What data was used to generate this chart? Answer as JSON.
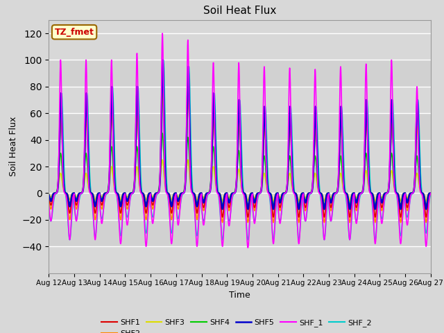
{
  "title": "Soil Heat Flux",
  "xlabel": "Time",
  "ylabel": "Soil Heat Flux",
  "ylim": [
    -60,
    130
  ],
  "yticks": [
    -40,
    -20,
    0,
    20,
    40,
    60,
    80,
    100,
    120
  ],
  "xtick_labels": [
    "Aug 12",
    "Aug 13",
    "Aug 14",
    "Aug 15",
    "Aug 16",
    "Aug 17",
    "Aug 18",
    "Aug 19",
    "Aug 20",
    "Aug 21",
    "Aug 22",
    "Aug 23",
    "Aug 24",
    "Aug 25",
    "Aug 26",
    "Aug 27"
  ],
  "series": {
    "SHF1": {
      "color": "#dd0000",
      "lw": 1.2
    },
    "SHF2": {
      "color": "#ff8800",
      "lw": 1.2
    },
    "SHF3": {
      "color": "#dddd00",
      "lw": 1.2
    },
    "SHF4": {
      "color": "#00cc00",
      "lw": 1.2
    },
    "SHF5": {
      "color": "#0000cc",
      "lw": 1.8
    },
    "SHF_1": {
      "color": "#ff00ff",
      "lw": 1.2
    },
    "SHF_2": {
      "color": "#00cccc",
      "lw": 1.2
    }
  },
  "annotation_text": "TZ_fmet",
  "annotation_color": "#cc0000",
  "annotation_bg": "#ffffcc",
  "annotation_border": "#996600",
  "fig_bg": "#d8d8d8",
  "plot_bg": "#d8d8d8",
  "grid_color": "#ffffff",
  "peak_amps": [
    100,
    100,
    100,
    105,
    120,
    115,
    98,
    98,
    95,
    94,
    93,
    95,
    97,
    100,
    80
  ],
  "shf1_peaks": [
    75,
    75,
    80,
    80,
    100,
    95,
    75,
    70,
    65,
    65,
    65,
    65,
    70,
    70,
    70
  ],
  "shf5_peaks": [
    75,
    75,
    80,
    80,
    100,
    95,
    75,
    70,
    65,
    65,
    65,
    65,
    70,
    70,
    70
  ],
  "shf3_peaks": [
    15,
    15,
    20,
    20,
    25,
    25,
    20,
    18,
    15,
    15,
    15,
    15,
    17,
    17,
    15
  ],
  "shf4_peaks": [
    30,
    30,
    35,
    35,
    45,
    42,
    35,
    32,
    28,
    28,
    28,
    28,
    30,
    30,
    28
  ],
  "shf2_peaks": [
    55,
    55,
    58,
    58,
    75,
    70,
    55,
    52,
    48,
    48,
    48,
    48,
    52,
    52,
    50
  ],
  "shf_2_peaks": [
    75,
    75,
    80,
    80,
    100,
    95,
    75,
    70,
    65,
    65,
    65,
    65,
    70,
    70,
    70
  ],
  "shf1_mins": [
    -15,
    -15,
    -15,
    -15,
    -15,
    -15,
    -18,
    -18,
    -18,
    -18,
    -18,
    -18,
    -18,
    -18,
    -18
  ],
  "shf2_mins": [
    -20,
    -20,
    -20,
    -20,
    -20,
    -20,
    -22,
    -22,
    -22,
    -22,
    -22,
    -22,
    -22,
    -22,
    -22
  ],
  "shf3_mins": [
    -5,
    -5,
    -5,
    -5,
    -5,
    -5,
    -6,
    -6,
    -6,
    -6,
    -6,
    -6,
    -6,
    -6,
    -6
  ],
  "shf4_mins": [
    -8,
    -8,
    -8,
    -8,
    -8,
    -8,
    -9,
    -9,
    -9,
    -9,
    -9,
    -9,
    -9,
    -9,
    -9
  ],
  "shf5_mins": [
    -10,
    -10,
    -10,
    -10,
    -10,
    -10,
    -12,
    -12,
    -12,
    -12,
    -12,
    -12,
    -12,
    -12,
    -12
  ],
  "shf_1_mins": [
    -35,
    -35,
    -38,
    -40,
    -38,
    -40,
    -40,
    -41,
    -38,
    -38,
    -35,
    -35,
    -38,
    -38,
    -40
  ],
  "shf_2_mins": [
    -35,
    -33,
    -32,
    -30,
    -30,
    -32,
    -35,
    -35,
    -35,
    -35,
    -35,
    -35,
    -35,
    -32,
    -30
  ]
}
